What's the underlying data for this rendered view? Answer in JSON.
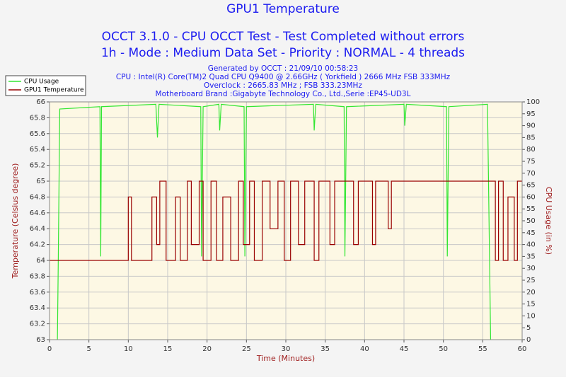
{
  "chart_data": {
    "type": "line",
    "title": "GPU1 Temperature",
    "title_lines": [
      "OCCT 3.1.0 - CPU OCCT Test - Test Completed without errors",
      "1h - Mode : Medium Data Set - Priority : NORMAL - 4 threads"
    ],
    "subtitle_lines": [
      "Generated by OCCT : 21/09/10 00:58:23",
      "CPU : Intel(R) Core(TM)2 Quad CPU Q9400 @ 2.66GHz ( Yorkfield ) 2666 MHz FSB 333MHz",
      "Overclock : 2665.83 MHz ; FSB 333.23MHz",
      "Motherboard Brand :Gigabyte Technology Co., Ltd.,Serie :EP45-UD3L"
    ],
    "xlabel": "Time (Minutes)",
    "ylabel": "Temperature (Celsius degree)",
    "y2label": "CPU Usage (in %)",
    "xlim": [
      0,
      60
    ],
    "xticks": [
      0,
      5,
      10,
      15,
      20,
      25,
      30,
      35,
      40,
      45,
      50,
      55,
      60
    ],
    "ylim": [
      63,
      66
    ],
    "yticks": [
      63,
      63.2,
      63.4,
      63.6,
      63.8,
      64,
      64.2,
      64.4,
      64.6,
      64.8,
      65,
      65.2,
      65.4,
      65.6,
      65.8,
      66
    ],
    "y2lim": [
      0,
      100
    ],
    "y2ticks": [
      0,
      5,
      10,
      15,
      20,
      25,
      30,
      35,
      40,
      45,
      50,
      55,
      60,
      65,
      70,
      75,
      80,
      85,
      90,
      95,
      100
    ],
    "grid": true,
    "legend": "upper left",
    "series": [
      {
        "name": "CPU Usage",
        "color": "#33e633",
        "axis": "y2",
        "x": [
          1,
          1.1,
          1.3,
          6.4,
          6.5,
          6.6,
          13.5,
          13.7,
          13.9,
          19.2,
          19.3,
          19.5,
          21.5,
          21.6,
          21.8,
          24.7,
          24.8,
          25,
          33.5,
          33.6,
          33.8,
          37.4,
          37.5,
          37.7,
          45,
          45.1,
          45.3,
          50.4,
          50.5,
          50.7,
          55.6,
          56
        ],
        "values": [
          0,
          30,
          97,
          98,
          35,
          98,
          99,
          85,
          99,
          98,
          35,
          98,
          99,
          88,
          99,
          98,
          35,
          98,
          99,
          88,
          99,
          98,
          35,
          98,
          99,
          90,
          99,
          98,
          35,
          98,
          99,
          0
        ]
      },
      {
        "name": "GPU1 Temperature",
        "color": "#990000",
        "x": [
          0,
          10,
          10,
          10.4,
          10.4,
          13,
          13,
          13.6,
          13.6,
          14,
          14,
          14.8,
          14.8,
          16,
          16,
          16.6,
          16.6,
          17.5,
          17.5,
          18,
          18,
          19,
          19,
          19.5,
          19.5,
          20.5,
          20.5,
          21.2,
          21.2,
          22,
          22,
          23,
          23,
          24,
          24,
          24.6,
          24.6,
          25.4,
          25.4,
          26,
          26,
          27,
          27,
          28,
          28,
          29,
          29,
          29.8,
          29.8,
          30.6,
          30.6,
          31.6,
          31.6,
          32.4,
          32.4,
          33.6,
          33.6,
          34.2,
          34.2,
          35.6,
          35.6,
          36.2,
          36.2,
          38.6,
          38.6,
          39.2,
          39.2,
          41,
          41,
          41.4,
          41.4,
          43,
          43,
          43.4,
          43.4,
          56.6,
          56.6,
          57,
          57,
          57.6,
          57.6,
          58.2,
          58.2,
          59,
          59,
          59.4,
          59.4,
          60
        ],
        "values": [
          64,
          64,
          64.8,
          64.8,
          64,
          64,
          64.8,
          64.8,
          64.2,
          64.2,
          65,
          65,
          64,
          64,
          64.8,
          64.8,
          64,
          64,
          65,
          65,
          64.2,
          64.2,
          65,
          65,
          64,
          64,
          65,
          65,
          64,
          64,
          64.8,
          64.8,
          64,
          64,
          65,
          65,
          64.2,
          64.2,
          65,
          65,
          64,
          64,
          65,
          65,
          64.4,
          64.4,
          65,
          65,
          64,
          64,
          65,
          65,
          64.2,
          64.2,
          65,
          65,
          64,
          64,
          65,
          65,
          64.2,
          64.2,
          65,
          65,
          64.2,
          64.2,
          65,
          65,
          64.2,
          64.2,
          65,
          65,
          64.4,
          64.4,
          65,
          65,
          64,
          64,
          65,
          65,
          64,
          64,
          64.8,
          64.8,
          64,
          64,
          65,
          65
        ]
      }
    ]
  }
}
